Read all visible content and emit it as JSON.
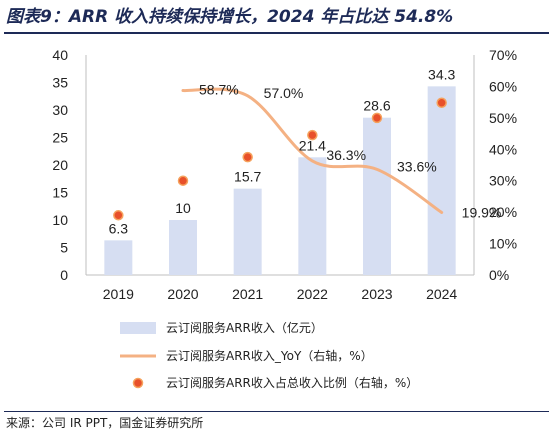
{
  "title": "图表9：ARR 收入持续保持增长，2024 年占比达 54.8%",
  "source": "来源：公司 IR PPT，国金证券研究所",
  "chart_data": {
    "type": "bar",
    "categories": [
      "2019",
      "2020",
      "2021",
      "2022",
      "2023",
      "2024"
    ],
    "ylim": [
      0,
      40
    ],
    "y2lim": [
      0,
      0.7
    ],
    "y_ticks": [
      "0",
      "5",
      "10",
      "15",
      "20",
      "25",
      "30",
      "35",
      "40"
    ],
    "y2_ticks": [
      "0%",
      "10%",
      "20%",
      "30%",
      "40%",
      "50%",
      "60%",
      "70%"
    ],
    "series": [
      {
        "name": "云订阅服务ARR收入（亿元）",
        "type": "bar",
        "axis": "left",
        "color": "#d6def2",
        "values": [
          6.3,
          10,
          15.7,
          21.4,
          28.6,
          34.3
        ],
        "labels": [
          "6.3",
          "10",
          "15.7",
          "21.4",
          "28.6",
          "34.3"
        ]
      },
      {
        "name": "云订阅服务ARR收入_YoY（右轴，%）",
        "type": "line",
        "axis": "right",
        "color": "#f4b183",
        "values": [
          null,
          0.587,
          0.57,
          0.363,
          0.336,
          0.199
        ],
        "labels": [
          "",
          "58.7%",
          "57.0%",
          "36.3%",
          "33.6%",
          "19.9%"
        ]
      },
      {
        "name": "云订阅服务ARR收入占总收入比例（右轴，%）",
        "type": "scatter",
        "axis": "right",
        "color": "#e8502a",
        "edge_color": "#f5a25d",
        "values": [
          0.19,
          0.3,
          0.375,
          0.445,
          0.5,
          0.548
        ]
      }
    ],
    "legend_position": "bottom"
  }
}
